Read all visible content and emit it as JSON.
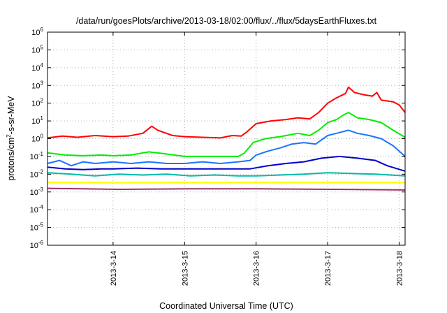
{
  "chart_data": {
    "type": "line",
    "title": "/data/run/goesPlots/archive/2013-03-18/02:00/flux/../flux/5daysEarthFluxes.txt",
    "xlabel": "Coordinated Universal Time (UTC)",
    "ylabel_main": "protons/cm",
    "ylabel_sup": "2",
    "ylabel_rest": "-s-sr-MeV",
    "xscale": "linear",
    "yscale": "log",
    "x_start": "2013-03-13 02:00",
    "x_end": "2013-03-18 02:00",
    "xticks": [
      {
        "date": "2013-03-14 00:00",
        "label": "2013-3-14"
      },
      {
        "date": "2013-03-15 00:00",
        "label": "2013-3-15"
      },
      {
        "date": "2013-03-16 00:00",
        "label": "2013-3-16"
      },
      {
        "date": "2013-03-17 00:00",
        "label": "2013-3-17"
      },
      {
        "date": "2013-03-18 00:00",
        "label": "2013-3-18"
      }
    ],
    "yticks": [
      {
        "exp": 6,
        "base": "10",
        "sup": "6"
      },
      {
        "exp": 5,
        "base": "10",
        "sup": "5"
      },
      {
        "exp": 4,
        "base": "10",
        "sup": "4"
      },
      {
        "exp": 3,
        "base": "10",
        "sup": "3"
      },
      {
        "exp": 2,
        "base": "10",
        "sup": "2"
      },
      {
        "exp": 1,
        "base": "10",
        "sup": "1"
      },
      {
        "exp": 0,
        "base": "10",
        "sup": "0"
      },
      {
        "exp": -1,
        "base": "10",
        "sup": "-1"
      },
      {
        "exp": -2,
        "base": "10",
        "sup": "-2"
      },
      {
        "exp": -3,
        "base": "10",
        "sup": "-3"
      },
      {
        "exp": -4,
        "base": "10",
        "sup": "-4"
      },
      {
        "exp": -5,
        "base": "10",
        "sup": "-5"
      },
      {
        "exp": -6,
        "base": "10",
        "sup": "-6"
      }
    ],
    "ylim": [
      1e-06,
      1000000.0
    ],
    "grid": true,
    "legend": "none",
    "series": [
      {
        "color": "#ff0000",
        "points": [
          [
            "2013-03-13 02:00",
            1.1
          ],
          [
            "2013-03-13 07:00",
            1.4
          ],
          [
            "2013-03-13 12:00",
            1.2
          ],
          [
            "2013-03-13 18:00",
            1.5
          ],
          [
            "2013-03-14 00:00",
            1.3
          ],
          [
            "2013-03-14 05:00",
            1.4
          ],
          [
            "2013-03-14 10:00",
            2.0
          ],
          [
            "2013-03-14 13:00",
            5.0
          ],
          [
            "2013-03-14 15:00",
            3.0
          ],
          [
            "2013-03-14 20:00",
            1.5
          ],
          [
            "2013-03-15 00:00",
            1.3
          ],
          [
            "2013-03-15 06:00",
            1.2
          ],
          [
            "2013-03-15 12:00",
            1.1
          ],
          [
            "2013-03-15 16:00",
            1.5
          ],
          [
            "2013-03-15 19:00",
            1.4
          ],
          [
            "2013-03-15 21:00",
            2.5
          ],
          [
            "2013-03-16 00:00",
            7.0
          ],
          [
            "2013-03-16 05:00",
            10
          ],
          [
            "2013-03-16 10:00",
            12
          ],
          [
            "2013-03-16 14:00",
            15
          ],
          [
            "2013-03-16 18:00",
            13
          ],
          [
            "2013-03-16 21:00",
            30
          ],
          [
            "2013-03-17 00:00",
            100
          ],
          [
            "2013-03-17 03:00",
            200
          ],
          [
            "2013-03-17 06:00",
            350
          ],
          [
            "2013-03-17 07:00",
            800
          ],
          [
            "2013-03-17 09:00",
            400
          ],
          [
            "2013-03-17 12:00",
            300
          ],
          [
            "2013-03-17 15:00",
            250
          ],
          [
            "2013-03-17 16:30",
            400
          ],
          [
            "2013-03-17 18:00",
            150
          ],
          [
            "2013-03-17 22:00",
            120
          ],
          [
            "2013-03-18 00:00",
            80
          ],
          [
            "2013-03-18 02:00",
            30
          ]
        ]
      },
      {
        "color": "#00ee00",
        "points": [
          [
            "2013-03-13 02:00",
            0.16
          ],
          [
            "2013-03-13 08:00",
            0.12
          ],
          [
            "2013-03-13 14:00",
            0.11
          ],
          [
            "2013-03-13 20:00",
            0.12
          ],
          [
            "2013-03-14 00:00",
            0.11
          ],
          [
            "2013-03-14 06:00",
            0.12
          ],
          [
            "2013-03-14 12:00",
            0.18
          ],
          [
            "2013-03-14 16:00",
            0.15
          ],
          [
            "2013-03-15 00:00",
            0.1
          ],
          [
            "2013-03-15 08:00",
            0.1
          ],
          [
            "2013-03-15 14:00",
            0.1
          ],
          [
            "2013-03-15 18:00",
            0.1
          ],
          [
            "2013-03-15 20:00",
            0.15
          ],
          [
            "2013-03-15 23:00",
            0.6
          ],
          [
            "2013-03-16 03:00",
            1.0
          ],
          [
            "2013-03-16 08:00",
            1.3
          ],
          [
            "2013-03-16 14:00",
            2.0
          ],
          [
            "2013-03-16 18:00",
            1.5
          ],
          [
            "2013-03-16 21:00",
            3.0
          ],
          [
            "2013-03-17 00:00",
            8.0
          ],
          [
            "2013-03-17 03:00",
            12
          ],
          [
            "2013-03-17 05:00",
            20
          ],
          [
            "2013-03-17 07:00",
            30
          ],
          [
            "2013-03-17 10:00",
            15
          ],
          [
            "2013-03-17 14:00",
            12
          ],
          [
            "2013-03-17 18:00",
            8
          ],
          [
            "2013-03-17 22:00",
            3
          ],
          [
            "2013-03-18 02:00",
            1.2
          ]
        ]
      },
      {
        "color": "#1a75ff",
        "points": [
          [
            "2013-03-13 02:00",
            0.04
          ],
          [
            "2013-03-13 06:00",
            0.06
          ],
          [
            "2013-03-13 10:00",
            0.03
          ],
          [
            "2013-03-13 14:00",
            0.05
          ],
          [
            "2013-03-13 18:00",
            0.04
          ],
          [
            "2013-03-14 00:00",
            0.05
          ],
          [
            "2013-03-14 06:00",
            0.04
          ],
          [
            "2013-03-14 12:00",
            0.05
          ],
          [
            "2013-03-14 18:00",
            0.04
          ],
          [
            "2013-03-15 00:00",
            0.04
          ],
          [
            "2013-03-15 06:00",
            0.05
          ],
          [
            "2013-03-15 12:00",
            0.04
          ],
          [
            "2013-03-15 18:00",
            0.05
          ],
          [
            "2013-03-15 22:00",
            0.06
          ],
          [
            "2013-03-16 00:00",
            0.12
          ],
          [
            "2013-03-16 04:00",
            0.2
          ],
          [
            "2013-03-16 08:00",
            0.3
          ],
          [
            "2013-03-16 12:00",
            0.5
          ],
          [
            "2013-03-16 16:00",
            0.6
          ],
          [
            "2013-03-16 20:00",
            0.5
          ],
          [
            "2013-03-17 00:00",
            1.5
          ],
          [
            "2013-03-17 03:00",
            2.0
          ],
          [
            "2013-03-17 07:00",
            3.0
          ],
          [
            "2013-03-17 10:00",
            2.0
          ],
          [
            "2013-03-17 14:00",
            1.5
          ],
          [
            "2013-03-17 18:00",
            1.0
          ],
          [
            "2013-03-17 22:00",
            0.4
          ],
          [
            "2013-03-18 02:00",
            0.1
          ]
        ]
      },
      {
        "color": "#0000cc",
        "points": [
          [
            "2013-03-13 02:00",
            0.025
          ],
          [
            "2013-03-13 08:00",
            0.02
          ],
          [
            "2013-03-13 14:00",
            0.018
          ],
          [
            "2013-03-13 20:00",
            0.02
          ],
          [
            "2013-03-14 00:00",
            0.02
          ],
          [
            "2013-03-14 08:00",
            0.022
          ],
          [
            "2013-03-14 16:00",
            0.02
          ],
          [
            "2013-03-15 00:00",
            0.02
          ],
          [
            "2013-03-15 08:00",
            0.02
          ],
          [
            "2013-03-15 16:00",
            0.02
          ],
          [
            "2013-03-15 22:00",
            0.02
          ],
          [
            "2013-03-16 04:00",
            0.03
          ],
          [
            "2013-03-16 10:00",
            0.04
          ],
          [
            "2013-03-16 16:00",
            0.05
          ],
          [
            "2013-03-16 22:00",
            0.08
          ],
          [
            "2013-03-17 04:00",
            0.1
          ],
          [
            "2013-03-17 10:00",
            0.08
          ],
          [
            "2013-03-17 16:00",
            0.06
          ],
          [
            "2013-03-17 20:00",
            0.03
          ],
          [
            "2013-03-18 02:00",
            0.015
          ]
        ]
      },
      {
        "color": "#00bbaa",
        "points": [
          [
            "2013-03-13 02:00",
            0.012
          ],
          [
            "2013-03-13 10:00",
            0.01
          ],
          [
            "2013-03-13 18:00",
            0.008
          ],
          [
            "2013-03-14 02:00",
            0.01
          ],
          [
            "2013-03-14 10:00",
            0.009
          ],
          [
            "2013-03-14 18:00",
            0.01
          ],
          [
            "2013-03-15 02:00",
            0.008
          ],
          [
            "2013-03-15 10:00",
            0.009
          ],
          [
            "2013-03-15 18:00",
            0.008
          ],
          [
            "2013-03-16 00:00",
            0.008
          ],
          [
            "2013-03-16 08:00",
            0.009
          ],
          [
            "2013-03-16 16:00",
            0.01
          ],
          [
            "2013-03-17 00:00",
            0.012
          ],
          [
            "2013-03-17 08:00",
            0.011
          ],
          [
            "2013-03-17 16:00",
            0.01
          ],
          [
            "2013-03-18 02:00",
            0.008
          ]
        ]
      },
      {
        "color": "#ffff00",
        "points": [
          [
            "2013-03-13 02:00",
            0.0035
          ],
          [
            "2013-03-14 02:00",
            0.0033
          ],
          [
            "2013-03-15 02:00",
            0.0034
          ],
          [
            "2013-03-16 02:00",
            0.0035
          ],
          [
            "2013-03-17 02:00",
            0.0034
          ],
          [
            "2013-03-18 02:00",
            0.0034
          ]
        ]
      },
      {
        "color": "#993366",
        "points": [
          [
            "2013-03-13 02:00",
            0.0016
          ],
          [
            "2013-03-14 02:00",
            0.0014
          ],
          [
            "2013-03-15 02:00",
            0.0015
          ],
          [
            "2013-03-16 02:00",
            0.0015
          ],
          [
            "2013-03-17 02:00",
            0.0014
          ],
          [
            "2013-03-18 02:00",
            0.0013
          ]
        ]
      }
    ]
  }
}
